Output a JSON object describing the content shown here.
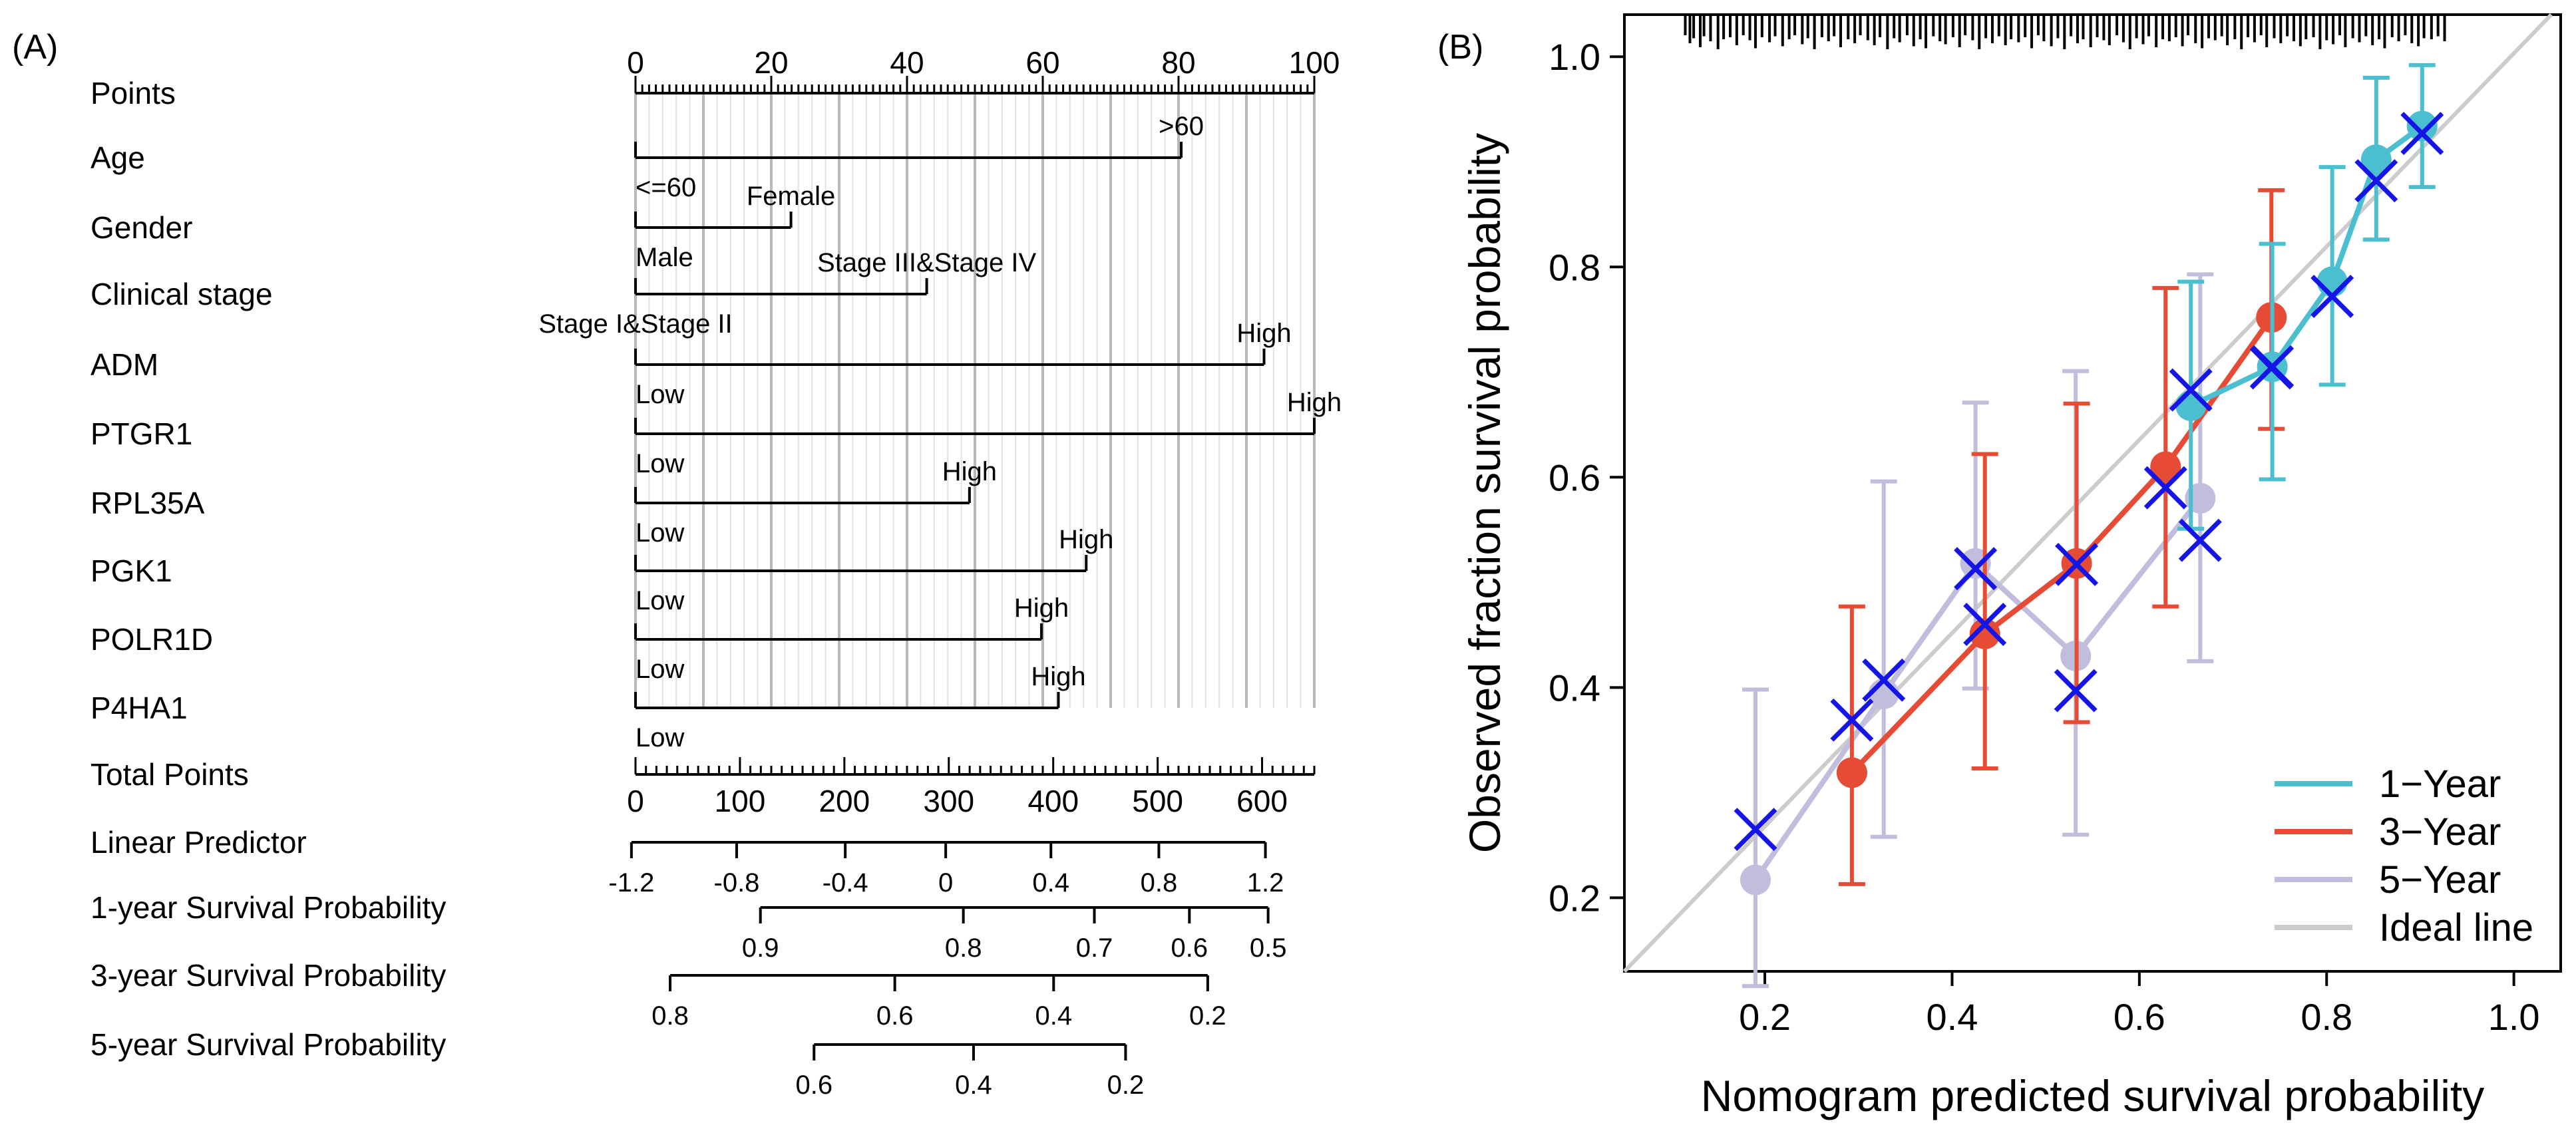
{
  "panel_a": {
    "label": "(A)",
    "rows": [
      {
        "name": "Points",
        "scale": {
          "min": 0,
          "max": 100,
          "major": [
            0,
            20,
            40,
            60,
            80,
            100
          ],
          "minor": 1
        }
      },
      {
        "name": "Age",
        "line": [
          0,
          80.4
        ],
        "labels": [
          {
            "t": "<=60",
            "v": 0,
            "pos": "below"
          },
          {
            "t": ">60",
            "v": 80.4,
            "pos": "above"
          }
        ]
      },
      {
        "name": "Gender",
        "line": [
          0,
          22.9
        ],
        "labels": [
          {
            "t": "Male",
            "v": 0,
            "pos": "below"
          },
          {
            "t": "Female",
            "v": 22.9,
            "pos": "above"
          }
        ]
      },
      {
        "name": "Clinical stage",
        "line": [
          0,
          42.9
        ],
        "labels": [
          {
            "t": "Stage I&Stage II",
            "v": 0,
            "pos": "below"
          },
          {
            "t": "Stage III&Stage IV",
            "v": 42.9,
            "pos": "above"
          }
        ]
      },
      {
        "name": "ADM",
        "line": [
          0,
          92.6
        ],
        "labels": [
          {
            "t": "Low",
            "v": 0,
            "pos": "below"
          },
          {
            "t": "High",
            "v": 92.6,
            "pos": "above"
          }
        ]
      },
      {
        "name": "PTGR1",
        "line": [
          0,
          100
        ],
        "labels": [
          {
            "t": "Low",
            "v": 0,
            "pos": "below"
          },
          {
            "t": "High",
            "v": 100,
            "pos": "above"
          }
        ]
      },
      {
        "name": "RPL35A",
        "line": [
          0,
          49.2
        ],
        "labels": [
          {
            "t": "Low",
            "v": 0,
            "pos": "below"
          },
          {
            "t": "High",
            "v": 49.2,
            "pos": "above"
          }
        ]
      },
      {
        "name": "PGK1",
        "line": [
          0,
          66.4
        ],
        "labels": [
          {
            "t": "Low",
            "v": 0,
            "pos": "below"
          },
          {
            "t": "High",
            "v": 66.4,
            "pos": "above"
          }
        ]
      },
      {
        "name": "POLR1D",
        "line": [
          0,
          59.8
        ],
        "labels": [
          {
            "t": "Low",
            "v": 0,
            "pos": "below"
          },
          {
            "t": "High",
            "v": 59.8,
            "pos": "above"
          }
        ]
      },
      {
        "name": "P4HA1",
        "line": [
          0,
          62.3
        ],
        "labels": [
          {
            "t": "Low",
            "v": 0,
            "pos": "below"
          },
          {
            "t": "High",
            "v": 62.3,
            "pos": "above"
          }
        ]
      },
      {
        "name": "Total Points",
        "scale": {
          "min": 0,
          "max": 650,
          "major": [
            0,
            100,
            200,
            300,
            400,
            500,
            600
          ],
          "minor": 10
        }
      },
      {
        "name": "Linear Predictor",
        "axis": {
          "range": [
            -1.2,
            1.2
          ],
          "ticks": [
            {
              "t": "-1.2",
              "p": -0.6
            },
            {
              "t": "-0.8",
              "p": 14.9
            },
            {
              "t": "-0.4",
              "p": 30.9
            },
            {
              "t": "0",
              "p": 45.7
            },
            {
              "t": "0.4",
              "p": 61.2
            },
            {
              "t": "0.8",
              "p": 77.1
            },
            {
              "t": "1.2",
              "p": 92.8
            }
          ]
        }
      },
      {
        "name": "1-year Survival Probability",
        "axis": {
          "range": [
            0.9,
            0.5
          ],
          "ticks": [
            {
              "t": "0.9",
              "p": 18.4
            },
            {
              "t": "0.8",
              "p": 48.3
            },
            {
              "t": "0.7",
              "p": 67.6
            },
            {
              "t": "0.6",
              "p": 81.6
            },
            {
              "t": "0.5",
              "p": 93.2
            }
          ]
        }
      },
      {
        "name": "3-year Survival Probability",
        "axis": {
          "range": [
            0.8,
            0.2
          ],
          "ticks": [
            {
              "t": "0.8",
              "p": 5.1
            },
            {
              "t": "0.6",
              "p": 38.2
            },
            {
              "t": "0.4",
              "p": 61.6
            },
            {
              "t": "0.2",
              "p": 84.3
            }
          ]
        }
      },
      {
        "name": "5-year Survival Probability",
        "axis": {
          "range": [
            0.6,
            0.2
          ],
          "ticks": [
            {
              "t": "0.6",
              "p": 26.3
            },
            {
              "t": "0.4",
              "p": 49.8
            },
            {
              "t": "0.2",
              "p": 72.2
            }
          ]
        }
      }
    ]
  },
  "chart_data": {
    "type": "line",
    "label": "(B)",
    "xlabel": "Nomogram predicted survival probability",
    "ylabel": "Observed fraction survival probability",
    "xlim": [
      0.05,
      1.05
    ],
    "ylim": [
      0.13,
      1.04
    ],
    "xticks": [
      0.2,
      0.4,
      0.6,
      0.8,
      1.0
    ],
    "yticks": [
      0.2,
      0.4,
      0.6,
      0.8,
      1.0
    ],
    "xticklabels": [
      "0.2",
      "0.4",
      "0.6",
      "0.8",
      "1.0"
    ],
    "yticklabels": [
      "0.2",
      "0.4",
      "0.6",
      "0.8",
      "1.0"
    ],
    "legend_position": "bottom-right",
    "series": [
      {
        "name": "1−Year",
        "color": "#4bbfd0",
        "points": [
          [
            0.655,
            0.668,
            0.551,
            0.786
          ],
          [
            0.742,
            0.705,
            0.598,
            0.822
          ],
          [
            0.806,
            0.786,
            0.688,
            0.895
          ],
          [
            0.853,
            0.902,
            0.826,
            0.98
          ],
          [
            0.902,
            0.934,
            0.876,
            0.992
          ]
        ],
        "crosses": [
          [
            0.655,
            0.683
          ],
          [
            0.742,
            0.705
          ],
          [
            0.806,
            0.772
          ],
          [
            0.853,
            0.882
          ],
          [
            0.902,
            0.927
          ]
        ]
      },
      {
        "name": "3−Year",
        "color": "#e64b35",
        "points": [
          [
            0.293,
            0.319,
            0.213,
            0.477
          ],
          [
            0.435,
            0.451,
            0.323,
            0.622
          ],
          [
            0.533,
            0.518,
            0.367,
            0.67
          ],
          [
            0.628,
            0.61,
            0.477,
            0.78
          ],
          [
            0.741,
            0.752,
            0.646,
            0.873
          ]
        ],
        "crosses": [
          [
            0.293,
            0.369
          ],
          [
            0.435,
            0.46
          ],
          [
            0.533,
            0.517
          ],
          [
            0.628,
            0.59
          ],
          [
            0.741,
            0.704
          ]
        ]
      },
      {
        "name": "5−Year",
        "color": "#c0bedc",
        "points": [
          [
            0.19,
            0.217,
            0.116,
            0.398
          ],
          [
            0.327,
            0.394,
            0.258,
            0.596
          ],
          [
            0.425,
            0.518,
            0.399,
            0.671
          ],
          [
            0.532,
            0.43,
            0.26,
            0.701
          ],
          [
            0.665,
            0.58,
            0.425,
            0.793
          ]
        ],
        "crosses": [
          [
            0.19,
            0.265
          ],
          [
            0.327,
            0.407
          ],
          [
            0.425,
            0.513
          ],
          [
            0.532,
            0.397
          ],
          [
            0.665,
            0.54
          ]
        ]
      }
    ],
    "ideal_line": {
      "name": "Ideal line",
      "color": "#cccccc",
      "from": [
        0.05,
        0.05
      ],
      "to": [
        1.04,
        1.04
      ]
    },
    "cross_color": "#1515e6",
    "rug": [
      0.115,
      0.12,
      0.124,
      0.131,
      0.135,
      0.142,
      0.15,
      0.156,
      0.163,
      0.17,
      0.177,
      0.184,
      0.19,
      0.197,
      0.205,
      0.211,
      0.219,
      0.226,
      0.232,
      0.24,
      0.246,
      0.253,
      0.261,
      0.268,
      0.274,
      0.281,
      0.289,
      0.296,
      0.302,
      0.31,
      0.317,
      0.323,
      0.331,
      0.338,
      0.344,
      0.352,
      0.359,
      0.366,
      0.372,
      0.38,
      0.387,
      0.393,
      0.401,
      0.408,
      0.414,
      0.422,
      0.429,
      0.436,
      0.443,
      0.45,
      0.457,
      0.463,
      0.471,
      0.478,
      0.485,
      0.492,
      0.498,
      0.506,
      0.513,
      0.52,
      0.527,
      0.534,
      0.54,
      0.548,
      0.555,
      0.562,
      0.568,
      0.576,
      0.583,
      0.59,
      0.597,
      0.604,
      0.61,
      0.618,
      0.625,
      0.632,
      0.639,
      0.646,
      0.652,
      0.66,
      0.667,
      0.674,
      0.681,
      0.688,
      0.694,
      0.702,
      0.709,
      0.716,
      0.723,
      0.73,
      0.736,
      0.744,
      0.751,
      0.758,
      0.765,
      0.772,
      0.778,
      0.786,
      0.793,
      0.8,
      0.807,
      0.814,
      0.82,
      0.828,
      0.835,
      0.842,
      0.849,
      0.856,
      0.862,
      0.87,
      0.877,
      0.884,
      0.891,
      0.898,
      0.904,
      0.912,
      0.919,
      0.926
    ],
    "rug_heights": [
      0.3,
      0.7,
      0.45,
      0.9,
      0.35,
      0.6,
      1,
      0.5,
      0.4,
      0.8,
      0.3,
      0.55,
      0.95,
      0.4,
      0.65,
      0.35,
      0.85,
      0.5,
      0.3,
      0.75,
      0.45,
      1,
      0.4,
      0.6,
      0.35,
      0.9,
      0.5,
      0.7,
      0.3,
      0.55,
      0.8,
      0.4,
      1,
      0.45,
      0.65,
      0.3,
      0.85,
      0.5,
      0.95,
      0.35,
      0.6,
      0.75,
      0.4,
      0.9,
      0.3,
      0.55,
      1,
      0.45,
      0.7,
      0.35,
      0.8,
      0.5,
      0.65,
      0.4,
      0.95,
      0.3,
      0.6,
      0.85,
      0.45,
      1,
      0.35,
      0.7,
      0.5,
      0.9,
      0.4,
      0.55,
      0.8,
      0.3,
      0.65,
      1,
      0.45,
      0.75,
      0.35,
      0.9,
      0.5,
      0.6,
      0.4,
      0.85,
      0.3,
      0.7,
      0.95,
      0.45,
      0.55,
      0.35,
      0.8,
      0.5,
      1,
      0.4,
      0.65,
      0.3,
      0.9,
      0.45,
      0.7,
      0.35,
      0.6,
      0.85,
      0.5,
      0.4,
      1,
      0.55,
      0.75,
      0.3,
      0.9,
      0.45,
      0.65,
      0.35,
      0.8,
      0.5,
      0.95,
      0.4,
      0.6,
      0.3,
      0.7,
      0.85,
      0.45,
      0.5,
      0.35,
      0.6
    ]
  }
}
